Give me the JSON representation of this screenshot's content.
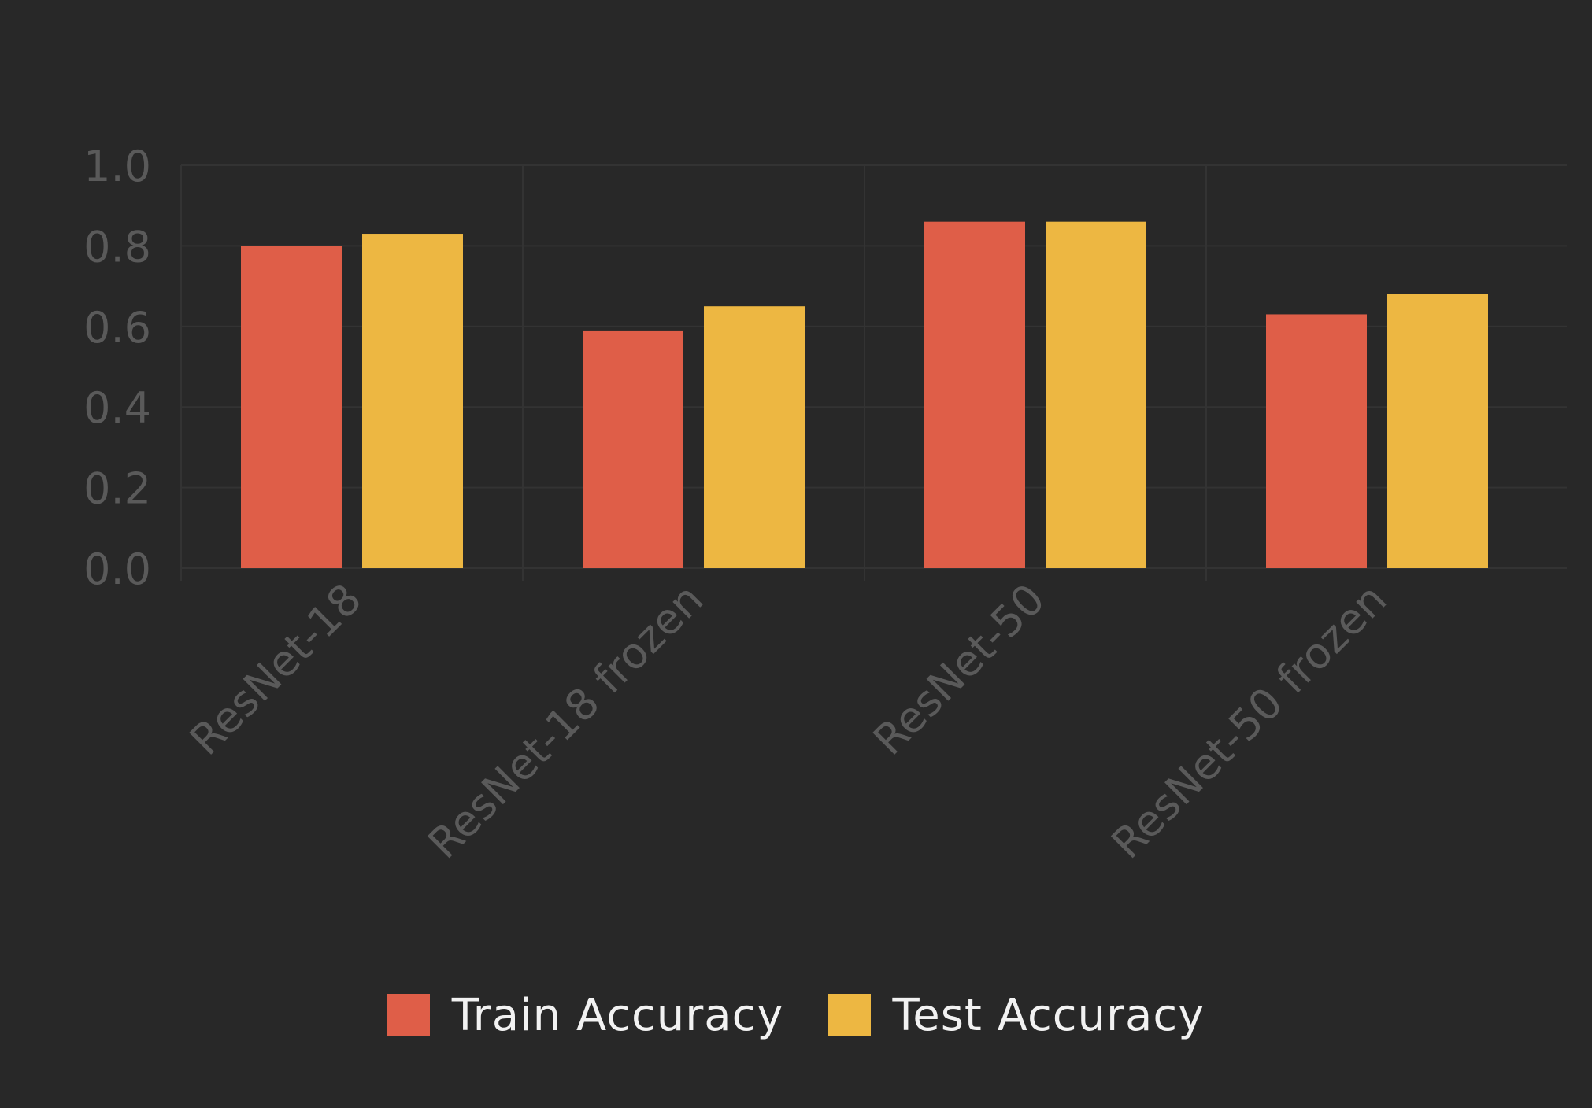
{
  "chart_data": {
    "type": "bar",
    "categories": [
      "ResNet-18",
      "ResNet-18 frozen",
      "ResNet-50",
      "ResNet-50 frozen"
    ],
    "series": [
      {
        "name": "Train Accuracy",
        "values": [
          0.8,
          0.59,
          0.86,
          0.63
        ],
        "color": "#df5e48"
      },
      {
        "name": "Test Accuracy",
        "values": [
          0.83,
          0.65,
          0.86,
          0.68
        ],
        "color": "#edb742"
      }
    ],
    "yticks": [
      "0.0",
      "0.2",
      "0.4",
      "0.6",
      "0.8",
      "1.0"
    ],
    "ylim": [
      0,
      1.0
    ],
    "grid": true,
    "legend_position": "bottom-center",
    "title": "",
    "xlabel": "",
    "ylabel": ""
  },
  "colors": {
    "background": "#282828",
    "gridline": "#333333",
    "axis_text": "#5a5a5a",
    "legend_text": "#f2f2f2"
  }
}
